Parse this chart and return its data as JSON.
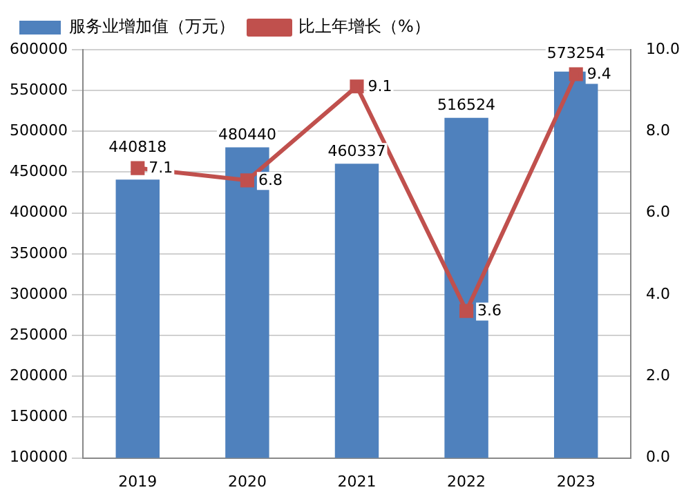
{
  "chart_data": {
    "type": "bar",
    "categories": [
      "2019",
      "2020",
      "2021",
      "2022",
      "2023"
    ],
    "series": [
      {
        "name": "服务业增加值（万元）",
        "color": "#4f81bd",
        "values": [
          440818,
          480440,
          460337,
          516524,
          573254
        ]
      },
      {
        "name": "比上年增长（%）",
        "type": "line",
        "axis": "y2",
        "color": "#c0504d",
        "values": [
          7.1,
          6.8,
          9.1,
          3.6,
          9.4
        ]
      }
    ],
    "ylim": [
      100000,
      600000
    ],
    "yticks": [
      100000,
      150000,
      200000,
      250000,
      300000,
      350000,
      400000,
      450000,
      500000,
      550000,
      600000
    ],
    "y2lim": [
      0,
      10
    ],
    "y2ticks": [
      {
        "value": 0,
        "label": "0.0"
      },
      {
        "value": 2,
        "label": "2.0"
      },
      {
        "value": 4,
        "label": "4.0"
      },
      {
        "value": 6,
        "label": "6.0"
      },
      {
        "value": 8,
        "label": "8.0"
      },
      {
        "value": 10,
        "label": "10.0"
      }
    ],
    "grid": "y",
    "legend": "top left",
    "marker": "square",
    "line_style": "solid",
    "data_labels": true
  }
}
